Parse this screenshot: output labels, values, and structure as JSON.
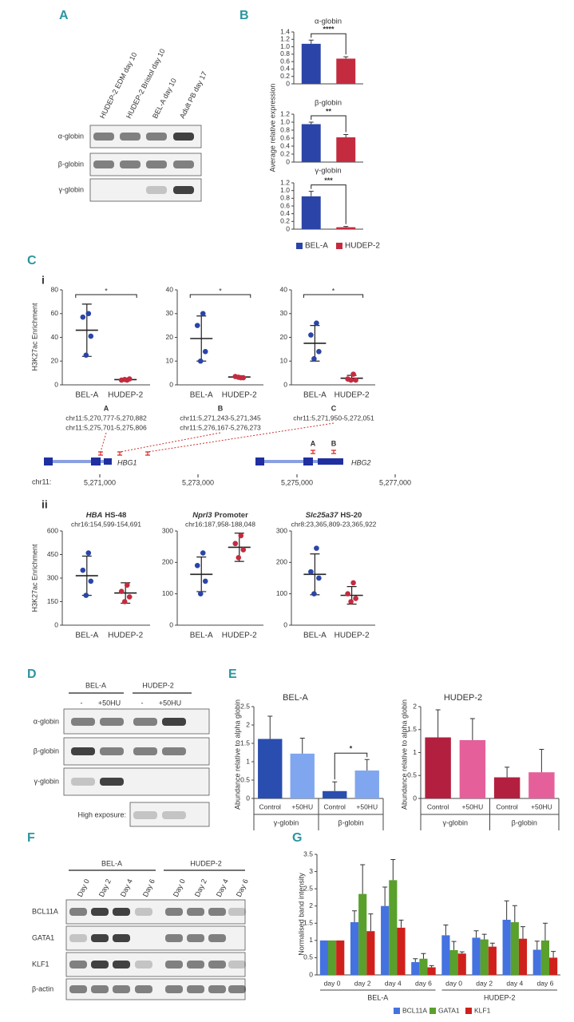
{
  "panel_labels": [
    "A",
    "B",
    "C",
    "i",
    "ii",
    "D",
    "E",
    "F",
    "G"
  ],
  "blot_a": {
    "columns": [
      "HUDEP-2 EDM day 10",
      "HUDEP-2 Bristol day 10",
      "BEL-A day 10",
      "Adult PB day 17"
    ],
    "rows": [
      "α-globin",
      "β-globin",
      "γ-globin"
    ]
  },
  "locus": {
    "genes": [
      "HBG1",
      "HBG2"
    ],
    "sites": [
      "A",
      "B"
    ],
    "axis_label": "chr11:",
    "ticks": [
      "5,271,000",
      "5,273,000",
      "5,275,000",
      "5,277,000"
    ]
  },
  "blot_d": {
    "groups": [
      "BEL-A",
      "HUDEP-2"
    ],
    "lanes": [
      "-",
      "+50HU",
      "-",
      "+50HU"
    ],
    "rows": [
      "α-globin",
      "β-globin",
      "γ-globin"
    ],
    "high_exposure": "High exposure:"
  },
  "blot_f": {
    "groups": [
      "BEL-A",
      "HUDEP-2"
    ],
    "lanes": [
      "Day 0",
      "Day 2",
      "Day 4",
      "Day 6",
      "Day 0",
      "Day 2",
      "Day 4",
      "Day 6"
    ],
    "rows": [
      "BCL11A",
      "GATA1",
      "KLF1",
      "β-actin"
    ]
  },
  "chart_data": [
    {
      "type": "bar",
      "title": "α-globin",
      "series": [
        {
          "color": "#2b44a8",
          "values": [
            1.08
          ],
          "errors": [
            0.1
          ]
        },
        {
          "color": "#c42b3f",
          "values": [
            0.68
          ],
          "errors": [
            0.05
          ]
        }
      ],
      "ylim": [
        0,
        1.4
      ],
      "yticks": [
        0,
        0.2,
        0.4,
        0.6,
        0.8,
        {
          "value": 1,
          "label": "1.0"
        },
        1.2,
        1.4
      ],
      "annotations": [
        "****"
      ]
    },
    {
      "type": "bar",
      "title": "β-globin",
      "ylabel": "Average relative expression",
      "series": [
        {
          "color": "#2b44a8",
          "values": [
            0.95
          ],
          "errors": [
            0.05
          ]
        },
        {
          "color": "#c42b3f",
          "values": [
            0.62
          ],
          "errors": [
            0.07
          ]
        }
      ],
      "ylim": [
        0,
        1.2
      ],
      "yticks": [
        0,
        0.2,
        0.4,
        0.6,
        0.8,
        {
          "value": 1,
          "label": "1.0"
        },
        1.2
      ],
      "annotations": [
        "**"
      ]
    },
    {
      "type": "bar",
      "title": "γ-globin",
      "series": [
        {
          "name": "BEL-A",
          "color": "#2b44a8",
          "values": [
            0.85
          ],
          "errors": [
            0.13
          ]
        },
        {
          "name": "HUDEP-2",
          "color": "#c42b3f",
          "values": [
            0.05
          ],
          "errors": [
            0.02
          ]
        }
      ],
      "ylim": [
        0,
        1.2
      ],
      "yticks": [
        0,
        0.2,
        0.4,
        0.6,
        0.8,
        {
          "value": 1,
          "label": "1.0"
        },
        1.2
      ],
      "annotations": [
        "***"
      ],
      "legend": "bottom"
    },
    {
      "type": "strip",
      "ylabel": "H3K27ac Enrichment",
      "region": "A",
      "coords": [
        "chr11:5,270,777-5,270,882",
        "chr11:5,275,701-5,275,806"
      ],
      "categories": [
        "BEL-A",
        "HUDEP-2"
      ],
      "colors": [
        "#2b44a8",
        "#c42b3f"
      ],
      "points": [
        [
          60,
          57,
          41,
          25
        ],
        [
          4,
          4,
          5,
          4.5
        ]
      ],
      "means": [
        46,
        4.4
      ],
      "sds": [
        22,
        0.5
      ],
      "ylim": [
        0,
        80
      ],
      "yticks": [
        0,
        20,
        40,
        60,
        80
      ],
      "annotations": [
        "*"
      ]
    },
    {
      "type": "strip",
      "region": "B",
      "coords": [
        "chr11:5,271,243-5,271,345",
        "chr11:5,276,167-5,276,273"
      ],
      "categories": [
        "BEL-A",
        "HUDEP-2"
      ],
      "colors": [
        "#2b44a8",
        "#c42b3f"
      ],
      "points": [
        [
          30,
          25,
          14,
          10
        ],
        [
          3,
          3.5,
          3,
          3.2
        ]
      ],
      "means": [
        19.5,
        3.3
      ],
      "sds": [
        9.5,
        0.5
      ],
      "ylim": [
        0,
        40
      ],
      "yticks": [
        0,
        10,
        20,
        30,
        40
      ],
      "annotations": [
        "*"
      ]
    },
    {
      "type": "strip",
      "region": "C",
      "coords": [
        "chr11:5,271,950-5,272,051"
      ],
      "categories": [
        "BEL-A",
        "HUDEP-2"
      ],
      "colors": [
        "#2b44a8",
        "#c42b3f"
      ],
      "points": [
        [
          26,
          21,
          14,
          11
        ],
        [
          4.5,
          2.5,
          2,
          2
        ]
      ],
      "means": [
        17.5,
        2.8
      ],
      "sds": [
        7.5,
        1.2
      ],
      "ylim": [
        0,
        40
      ],
      "yticks": [
        0,
        10,
        20,
        30,
        40
      ],
      "annotations": [
        "*"
      ]
    },
    {
      "type": "strip",
      "ylabel": "H3K27ac Enrichment",
      "gene": "HBA",
      "element": "HS-48",
      "coords": [
        "chr16:154,599-154,691"
      ],
      "categories": [
        "BEL-A",
        "HUDEP-2"
      ],
      "colors": [
        "#2b44a8",
        "#c42b3f"
      ],
      "points": [
        [
          460,
          350,
          280,
          190
        ],
        [
          255,
          215,
          180,
          150
        ]
      ],
      "means": [
        315,
        205
      ],
      "sds": [
        125,
        65
      ],
      "ylim": [
        0,
        600
      ],
      "yticks": [
        0,
        150,
        300,
        450,
        600
      ]
    },
    {
      "type": "strip",
      "gene": "Nprl3",
      "element": "Promoter",
      "coords": [
        "chr16:187,958-188,048"
      ],
      "categories": [
        "BEL-A",
        "HUDEP-2"
      ],
      "colors": [
        "#2b44a8",
        "#c42b3f"
      ],
      "points": [
        [
          230,
          190,
          140,
          100
        ],
        [
          285,
          260,
          240,
          215
        ]
      ],
      "means": [
        162,
        248
      ],
      "sds": [
        55,
        45
      ],
      "ylim": [
        0,
        300
      ],
      "yticks": [
        0,
        100,
        200,
        300
      ]
    },
    {
      "type": "strip",
      "gene": "Slc25a37",
      "element": "HS-20",
      "coords": [
        "chr8:23,365,809-23,365,922"
      ],
      "categories": [
        "BEL-A",
        "HUDEP-2"
      ],
      "colors": [
        "#2b44a8",
        "#c42b3f"
      ],
      "points": [
        [
          245,
          170,
          150,
          100
        ],
        [
          135,
          100,
          85,
          75
        ]
      ],
      "means": [
        162,
        95
      ],
      "sds": [
        65,
        28
      ],
      "ylim": [
        0,
        300
      ],
      "yticks": [
        0,
        100,
        200,
        300
      ]
    },
    {
      "type": "bar",
      "title": "BEL-A",
      "ylabel": "Abundance relative to alpha globin",
      "categories": [
        "Control",
        "+50HU",
        "Control",
        "+50HU"
      ],
      "groups": [
        "γ-globin",
        "β-globin"
      ],
      "values": [
        1.62,
        1.22,
        0.2,
        0.76
      ],
      "errors": [
        0.62,
        0.42,
        0.25,
        0.3
      ],
      "colors": [
        "#2a4db0",
        "#80a6ef",
        "#2a4db0",
        "#80a6ef"
      ],
      "ylim": [
        0,
        2.5
      ],
      "yticks": [
        0,
        0.5,
        1,
        1.5,
        2,
        2.5
      ],
      "annotations": [
        "*"
      ]
    },
    {
      "type": "bar",
      "title": "HUDEP-2",
      "ylabel": "Abundance relative to alpha globin",
      "categories": [
        "Control",
        "+50HU",
        "Control",
        "+50HU"
      ],
      "groups": [
        "γ-globin",
        "β-globin"
      ],
      "values": [
        1.33,
        1.27,
        0.46,
        0.57
      ],
      "errors": [
        0.6,
        0.47,
        0.22,
        0.5
      ],
      "colors": [
        "#b3203f",
        "#e5609a",
        "#b3203f",
        "#e5609a"
      ],
      "ylim": [
        0,
        2
      ],
      "yticks": [
        0,
        0.5,
        1,
        1.5,
        2
      ]
    },
    {
      "type": "bar",
      "ylabel": "Normalised band intensity",
      "categories": [
        "day 0",
        "day 2",
        "day 4",
        "day 6",
        "day 0",
        "day 2",
        "day 4",
        "day 6"
      ],
      "groups": [
        "BEL-A",
        "HUDEP-2"
      ],
      "series": [
        {
          "name": "BCL11A",
          "color": "#4472e0",
          "values": [
            1,
            1.53,
            2,
            0.37,
            1.15,
            1.08,
            1.6,
            0.73
          ],
          "errors": [
            0,
            0.33,
            0.55,
            0.1,
            0.3,
            0.2,
            0.55,
            0.25
          ]
        },
        {
          "name": "GATA1",
          "color": "#5aa02c",
          "values": [
            1,
            2.35,
            2.75,
            0.47,
            0.72,
            1.03,
            1.53,
            1
          ],
          "errors": [
            0,
            0.85,
            0.6,
            0.15,
            0.25,
            0.15,
            0.48,
            0.5
          ]
        },
        {
          "name": "KLF1",
          "color": "#d0201c",
          "values": [
            1,
            1.27,
            1.37,
            0.22,
            0.62,
            0.82,
            1.05,
            0.5
          ],
          "errors": [
            0,
            0.5,
            0.22,
            0.05,
            0.05,
            0.1,
            0.35,
            0.18
          ]
        }
      ],
      "ylim": [
        0,
        3.5
      ],
      "yticks": [
        0,
        0.5,
        1,
        1.5,
        2,
        2.5,
        3,
        3.5
      ],
      "legend": "bottom"
    }
  ]
}
